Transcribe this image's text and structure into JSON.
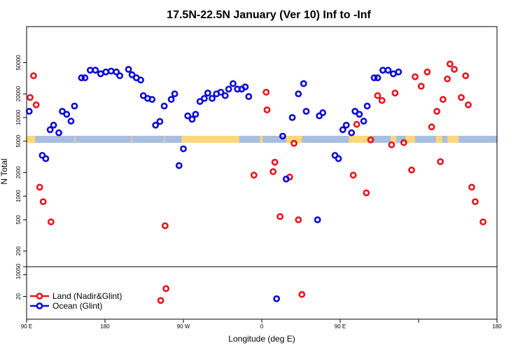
{
  "chart_data": {
    "type": "scatter",
    "title": "17.5N-22.5N January (Ver 10)   Inf to -Inf",
    "xlabel": "Longitude (deg E)",
    "ylabel": "N Total",
    "x_tick_labels": [
      "90 E",
      "180",
      "90 W",
      "0",
      "90 E",
      "180"
    ],
    "y_ticks_main": [
      "500",
      "1000",
      "2000",
      "5000",
      "10000",
      "20000",
      "50000"
    ],
    "y_ticks_lower": [
      "20",
      "50",
      "100",
      "200"
    ],
    "y_scale": "log",
    "legend_position": "bottom-left",
    "colors": {
      "land": "#e8141c",
      "ocean": "#0a0ad8",
      "land_band": "#ffd77a",
      "ocean_band": "#a8bedf"
    },
    "series": [
      {
        "name": "Land (Nadir&Glint)",
        "points": [
          {
            "lon": 4,
            "y": 18000
          },
          {
            "lon": 8,
            "y": 34000
          },
          {
            "lon": 11,
            "y": 14500
          },
          {
            "lon": 15,
            "y": 1300
          },
          {
            "lon": 19,
            "y": 850
          },
          {
            "lon": 28,
            "y": 470
          },
          {
            "lon": 154,
            "y": 15
          },
          {
            "lon": 160,
            "y": 35
          },
          {
            "lon": 159,
            "y": 420
          },
          {
            "lon": 275,
            "y": 21000
          },
          {
            "lon": 261,
            "y": 1850
          },
          {
            "lon": 276,
            "y": 12500
          },
          {
            "lon": 285,
            "y": 2700
          },
          {
            "lon": 291,
            "y": 550
          },
          {
            "lon": 283,
            "y": 2050
          },
          {
            "lon": 302,
            "y": 1750
          },
          {
            "lon": 307,
            "y": 4700
          },
          {
            "lon": 312,
            "y": 500
          },
          {
            "lon": 316,
            "y": 23
          },
          {
            "lon": 375,
            "y": 1850
          },
          {
            "lon": 379,
            "y": 8200
          },
          {
            "lon": 390,
            "y": 1100
          },
          {
            "lon": 395,
            "y": 5200
          },
          {
            "lon": 403,
            "y": 19000
          },
          {
            "lon": 408,
            "y": 16500
          },
          {
            "lon": 419,
            "y": 4500
          },
          {
            "lon": 423,
            "y": 20500
          },
          {
            "lon": 433,
            "y": 4800
          },
          {
            "lon": 442,
            "y": 2150
          },
          {
            "lon": 446,
            "y": 33000
          },
          {
            "lon": 453,
            "y": 25000
          },
          {
            "lon": 460,
            "y": 38000
          },
          {
            "lon": 465,
            "y": 7600
          },
          {
            "lon": 471,
            "y": 12000
          },
          {
            "lon": 478,
            "y": 17000
          },
          {
            "lon": 486,
            "y": 48000
          },
          {
            "lon": 491,
            "y": 41000
          },
          {
            "lon": 483,
            "y": 31000
          },
          {
            "lon": 475,
            "y": 2750
          },
          {
            "lon": 499,
            "y": 18000
          },
          {
            "lon": 504,
            "y": 34000
          },
          {
            "lon": 507,
            "y": 14500
          },
          {
            "lon": 511,
            "y": 1300
          },
          {
            "lon": 515,
            "y": 850
          },
          {
            "lon": 524,
            "y": 470
          }
        ]
      },
      {
        "name": "Ocean (Glint)",
        "points": [
          {
            "lon": 3,
            "y": 12000
          },
          {
            "lon": 18,
            "y": 3300
          },
          {
            "lon": 22,
            "y": 3000
          },
          {
            "lon": 27,
            "y": 7000
          },
          {
            "lon": 31,
            "y": 8000
          },
          {
            "lon": 37,
            "y": 6400
          },
          {
            "lon": 41,
            "y": 12000
          },
          {
            "lon": 46,
            "y": 11000
          },
          {
            "lon": 51,
            "y": 9000
          },
          {
            "lon": 55,
            "y": 14000
          },
          {
            "lon": 63,
            "y": 32000
          },
          {
            "lon": 67,
            "y": 32000
          },
          {
            "lon": 73,
            "y": 40000
          },
          {
            "lon": 79,
            "y": 40000
          },
          {
            "lon": 85,
            "y": 36000
          },
          {
            "lon": 91,
            "y": 38000
          },
          {
            "lon": 97,
            "y": 39000
          },
          {
            "lon": 103,
            "y": 38000
          },
          {
            "lon": 107,
            "y": 34000
          },
          {
            "lon": 117,
            "y": 41000
          },
          {
            "lon": 121,
            "y": 35000
          },
          {
            "lon": 126,
            "y": 32000
          },
          {
            "lon": 131,
            "y": 30000
          },
          {
            "lon": 134,
            "y": 19000
          },
          {
            "lon": 139,
            "y": 17500
          },
          {
            "lon": 144,
            "y": 17000
          },
          {
            "lon": 148,
            "y": 8000
          },
          {
            "lon": 153,
            "y": 8900
          },
          {
            "lon": 158,
            "y": 14000
          },
          {
            "lon": 166,
            "y": 17000
          },
          {
            "lon": 170,
            "y": 20000
          },
          {
            "lon": 175,
            "y": 2450
          },
          {
            "lon": 180,
            "y": 4000
          },
          {
            "lon": 185,
            "y": 10500
          },
          {
            "lon": 190,
            "y": 9500
          },
          {
            "lon": 194,
            "y": 11000
          },
          {
            "lon": 199,
            "y": 16000
          },
          {
            "lon": 204,
            "y": 17500
          },
          {
            "lon": 208,
            "y": 20500
          },
          {
            "lon": 213,
            "y": 17500
          },
          {
            "lon": 218,
            "y": 20000
          },
          {
            "lon": 223,
            "y": 21000
          },
          {
            "lon": 228,
            "y": 19000
          },
          {
            "lon": 232,
            "y": 23000
          },
          {
            "lon": 237,
            "y": 27000
          },
          {
            "lon": 242,
            "y": 23000
          },
          {
            "lon": 247,
            "y": 23000
          },
          {
            "lon": 251,
            "y": 24500
          },
          {
            "lon": 255,
            "y": 18500
          },
          {
            "lon": 287,
            "y": 17
          },
          {
            "lon": 294,
            "y": 5800
          },
          {
            "lon": 298,
            "y": 1650
          },
          {
            "lon": 305,
            "y": 10000
          },
          {
            "lon": 312,
            "y": 20000
          },
          {
            "lon": 318,
            "y": 27000
          },
          {
            "lon": 321,
            "y": 12000
          },
          {
            "lon": 334,
            "y": 500
          },
          {
            "lon": 336,
            "y": 10500
          },
          {
            "lon": 340,
            "y": 11500
          },
          {
            "lon": 354,
            "y": 3300
          },
          {
            "lon": 358,
            "y": 3000
          },
          {
            "lon": 363,
            "y": 7000
          },
          {
            "lon": 367,
            "y": 8000
          },
          {
            "lon": 373,
            "y": 6400
          },
          {
            "lon": 377,
            "y": 12000
          },
          {
            "lon": 382,
            "y": 11000
          },
          {
            "lon": 387,
            "y": 9000
          },
          {
            "lon": 391,
            "y": 14000
          },
          {
            "lon": 399,
            "y": 32000
          },
          {
            "lon": 403,
            "y": 32000
          },
          {
            "lon": 409,
            "y": 40000
          },
          {
            "lon": 415,
            "y": 40000
          },
          {
            "lon": 421,
            "y": 36000
          },
          {
            "lon": 427,
            "y": 38000
          }
        ]
      }
    ]
  }
}
